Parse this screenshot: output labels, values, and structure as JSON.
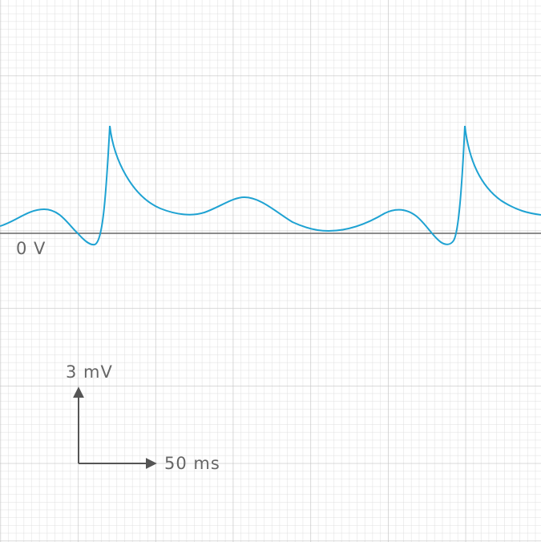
{
  "baseline_label": "0 V",
  "scale_bar": {
    "vertical_label": "3 mV",
    "horizontal_label": "50 ms"
  }
}
